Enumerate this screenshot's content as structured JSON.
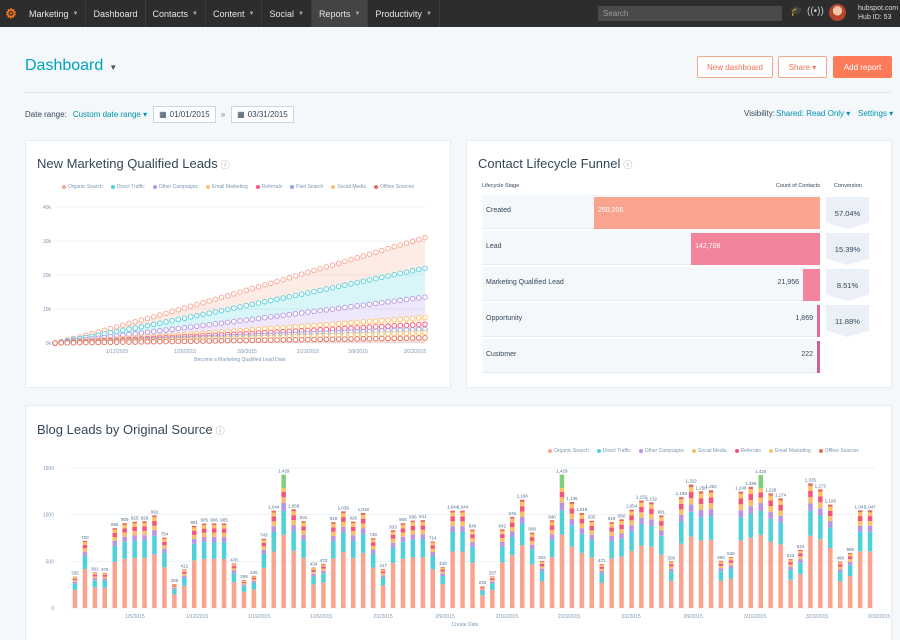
{
  "nav": {
    "logo": "⚙",
    "items": [
      {
        "label": "Marketing",
        "caret": true
      },
      {
        "label": "Dashboard",
        "caret": false
      },
      {
        "label": "Contacts",
        "caret": true
      },
      {
        "label": "Content",
        "caret": true
      },
      {
        "label": "Social",
        "caret": true
      },
      {
        "label": "Reports",
        "caret": true,
        "active": true
      },
      {
        "label": "Productivity",
        "caret": true
      }
    ],
    "search_placeholder": "Search",
    "hub_domain": "hubspot.com",
    "hub_id": "Hub ID: 53"
  },
  "header": {
    "title": "Dashboard",
    "new_dashboard": "New dashboard",
    "share": "Share ▾",
    "add_report": "Add report"
  },
  "filters": {
    "date_range_label": "Date range:",
    "date_range_value": "Custom date range ▾",
    "start_date": "01/01/2015",
    "end_date": "03/31/2015",
    "separator": "»",
    "visibility_label": "Visibility:",
    "visibility_value": "Shared: Read Only ▾",
    "settings": "Settings ▾"
  },
  "colors": {
    "accent": "#00a4bd",
    "primary_button": "#ff7a59",
    "organic_search": "#f8a48f",
    "direct_traffic": "#4fd1d9",
    "other_campaigns": "#b894e6",
    "email_marketing": "#ffc168",
    "referrals": "#f2547d",
    "paid_search": "#8fa3e6",
    "social_media": "#f5c26b",
    "offline_sources": "#e06c5b"
  },
  "mql_card": {
    "title": "New Marketing Qualified Leads",
    "legend": [
      "Organic Search",
      "Direct Traffic",
      "Other Campaigns",
      "Email Marketing",
      "Referrals",
      "Paid Search",
      "Social Media",
      "Offline Sources"
    ],
    "y_ticks": [
      "40k",
      "30k",
      "20k",
      "10k",
      "0k"
    ],
    "x_ticks": [
      "1/12/2015",
      "1/26/2015",
      "2/9/2015",
      "2/23/2015",
      "3/9/2015",
      "3/23/2015"
    ],
    "xlabel": "Become a Marketing Qualified Lead Date"
  },
  "chart_data": [
    {
      "type": "area",
      "title": "New Marketing Qualified Leads",
      "xlabel": "Become a Marketing Qualified Lead Date",
      "x_range": [
        "1/1/2015",
        "3/31/2015"
      ],
      "ylim": [
        0,
        40000
      ],
      "series": [
        {
          "name": "Organic Search",
          "start": 0,
          "end": 31000
        },
        {
          "name": "Direct Traffic",
          "start": 0,
          "end": 22000
        },
        {
          "name": "Other Campaigns",
          "start": 0,
          "end": 13500
        },
        {
          "name": "Email Marketing",
          "start": 0,
          "end": 7500
        },
        {
          "name": "Referrals",
          "start": 0,
          "end": 5500
        },
        {
          "name": "Paid Search",
          "start": 0,
          "end": 4000
        },
        {
          "name": "Social Media",
          "start": 0,
          "end": 3000
        },
        {
          "name": "Offline Sources",
          "start": 0,
          "end": 1500
        }
      ]
    },
    {
      "type": "bar",
      "title": "Contact Lifecycle Funnel",
      "categories": [
        "Created",
        "Lead",
        "Marketing Qualified Lead",
        "Opportunity",
        "Customer"
      ],
      "values": [
        250206,
        142708,
        21956,
        1869,
        222
      ],
      "value_labels": [
        "250,206",
        "142,708",
        "21,956",
        "1,869",
        "222"
      ],
      "conversion": [
        "57.04%",
        "15.39%",
        "8.51%",
        "11.88%"
      ]
    },
    {
      "type": "bar",
      "title": "Blog Leads by Original Source",
      "xlabel": "Create Date",
      "ylim": [
        0,
        1500
      ],
      "x_range": [
        "1/1/2015",
        "3/31/2015"
      ],
      "series": [
        "Organic Search",
        "Direct Traffic",
        "Other Campaigns",
        "Social Media",
        "Referrals",
        "Email Marketing",
        "Offline Sources"
      ],
      "totals": [
        335,
        720,
        381,
        376,
        855,
        909,
        925,
        929,
        992,
        754,
        256,
        412,
        881,
        905,
        906,
        905,
        478,
        299,
        345,
        743,
        1044,
        1429,
        1058,
        931,
        434,
        473,
        919,
        1036,
        926,
        1018,
        748,
        417,
        833,
        909,
        936,
        941,
        714,
        440,
        1044,
        1044,
        840,
        235,
        337,
        842,
        976,
        1160,
        808,
        502,
        940,
        1429,
        1136,
        1018,
        935,
        471,
        919,
        950,
        1054,
        1152,
        1132,
        991,
        500,
        1188,
        1322,
        1250,
        1262,
        506,
        545,
        1248,
        1299,
        1425,
        1228,
        1174,
        523,
        624,
        1335,
        1272,
        1108,
        496,
        589,
        1047,
        1047
      ]
    }
  ],
  "funnel_card": {
    "title": "Contact Lifecycle Funnel",
    "col_stage": "Lifecycle Stage",
    "col_count": "Count of Contacts",
    "col_conv": "Conversion",
    "rows": [
      {
        "label": "Created",
        "value": "250,206"
      },
      {
        "label": "Lead",
        "value": "142,708"
      },
      {
        "label": "Marketing Qualified Lead",
        "value": "21,956"
      },
      {
        "label": "Opportunity",
        "value": "1,869"
      },
      {
        "label": "Customer",
        "value": "222"
      }
    ],
    "conversions": [
      "57.04%",
      "15.39%",
      "8.51%",
      "11.88%"
    ]
  },
  "blog_card": {
    "title": "Blog Leads by Original Source",
    "legend": [
      "Organic Search",
      "Direct Traffic",
      "Other Campaigns",
      "Social Media",
      "Referrals",
      "Email Marketing",
      "Offline Sources"
    ],
    "y_ticks": [
      "1500",
      "1000",
      "500",
      "0"
    ],
    "x_ticks": [
      "1/5/2015",
      "1/12/2015",
      "1/19/2015",
      "1/26/2015",
      "2/2/2015",
      "2/9/2015",
      "2/16/2015",
      "2/23/2015",
      "3/2/2015",
      "3/9/2015",
      "3/16/2015",
      "3/23/2015",
      "3/30/2015"
    ],
    "xlabel": "Create Date"
  }
}
